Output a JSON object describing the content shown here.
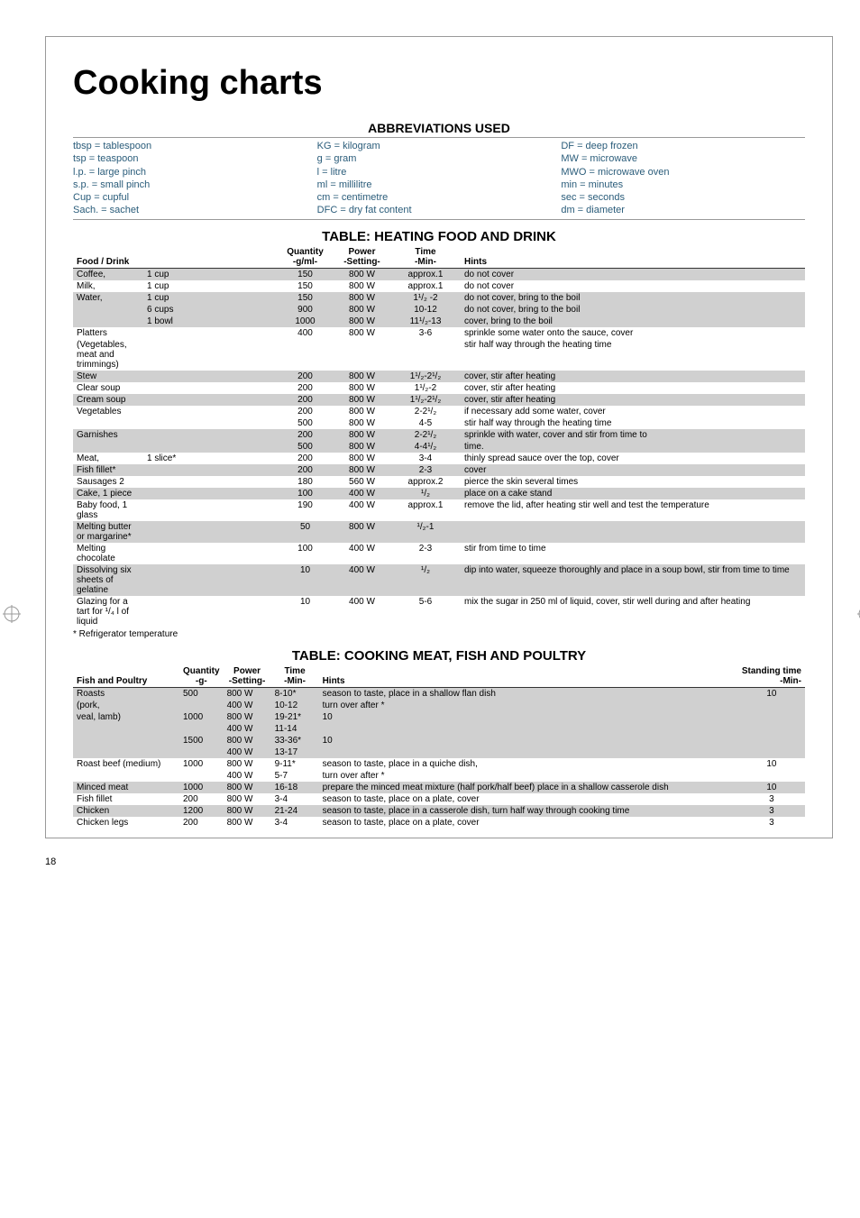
{
  "title": "Cooking charts",
  "abbrev_heading": "ABBREVIATIONS USED",
  "abbrev": {
    "col1": [
      "tbsp = tablespoon",
      "tsp = teaspoon",
      "l.p. = large pinch",
      "s.p. = small pinch",
      "Cup = cupful",
      "Sach. = sachet"
    ],
    "col2": [
      "KG = kilogram",
      "g = gram",
      "l = litre",
      "ml = millilitre",
      "cm = centimetre",
      "DFC = dry fat content"
    ],
    "col3": [
      "DF = deep frozen",
      "MW = microwave",
      "MWO = microwave oven",
      "min = minutes",
      "sec = seconds",
      "dm = diameter"
    ]
  },
  "heating": {
    "heading": "TABLE: HEATING FOOD AND DRINK",
    "columns": {
      "c1": "Food / Drink",
      "c2": "Quantity",
      "c2s": "-g/ml-",
      "c3": "Power",
      "c3s": "-Setting-",
      "c4": "Time",
      "c4s": "-Min-",
      "c5": "Hints"
    },
    "rows": [
      {
        "food": "Coffee,",
        "portion": "1 cup",
        "qty": "150",
        "power": "800 W",
        "time": "approx.1",
        "hint": "do not cover",
        "shaded": true
      },
      {
        "food": "Milk,",
        "portion": "1 cup",
        "qty": "150",
        "power": "800 W",
        "time": "approx.1",
        "hint": "do not cover",
        "shaded": false
      },
      {
        "food": "Water,",
        "portion": "1 cup",
        "qty": "150",
        "power": "800 W",
        "time": "1¹/₂ -2",
        "hint": "do not cover, bring to the boil",
        "shaded": true
      },
      {
        "food": "",
        "portion": "6 cups",
        "qty": "900",
        "power": "800 W",
        "time": "10-12",
        "hint": "do not cover, bring to the boil",
        "shaded": true
      },
      {
        "food": "",
        "portion": "1 bowl",
        "qty": "1000",
        "power": "800 W",
        "time": "11¹/₂-13",
        "hint": "cover, bring to the boil",
        "shaded": true
      },
      {
        "food": "Platters",
        "portion": "",
        "qty": "400",
        "power": "800 W",
        "time": "3-6",
        "hint": "sprinkle some water onto the sauce, cover",
        "shaded": false
      },
      {
        "food": "(Vegetables, meat and trimmings)",
        "portion": "",
        "qty": "",
        "power": "",
        "time": "",
        "hint": "stir half way through the heating time",
        "shaded": false
      },
      {
        "food": "Stew",
        "portion": "",
        "qty": "200",
        "power": "800 W",
        "time": "1¹/₂-2¹/₂",
        "hint": "cover, stir after heating",
        "shaded": true
      },
      {
        "food": "Clear soup",
        "portion": "",
        "qty": "200",
        "power": "800 W",
        "time": "1¹/₂-2",
        "hint": "cover, stir after heating",
        "shaded": false
      },
      {
        "food": "Cream soup",
        "portion": "",
        "qty": "200",
        "power": "800 W",
        "time": "1¹/₂-2¹/₂",
        "hint": "cover, stir after heating",
        "shaded": true
      },
      {
        "food": "Vegetables",
        "portion": "",
        "qty": "200",
        "power": "800 W",
        "time": "2-2¹/₂",
        "hint": "if necessary add some water, cover",
        "shaded": false
      },
      {
        "food": "",
        "portion": "",
        "qty": "500",
        "power": "800 W",
        "time": "4-5",
        "hint": "stir half way through the heating time",
        "shaded": false
      },
      {
        "food": "Garnishes",
        "portion": "",
        "qty": "200",
        "power": "800 W",
        "time": "2-2¹/₂",
        "hint": "sprinkle with water,  cover and stir from time to",
        "shaded": true
      },
      {
        "food": "",
        "portion": "",
        "qty": "500",
        "power": "800 W",
        "time": "4-4¹/₂",
        "hint": "time.",
        "shaded": true
      },
      {
        "food": "Meat,",
        "portion": "1 slice*",
        "qty": "200",
        "power": "800 W",
        "time": "3-4",
        "hint": "thinly spread sauce over the top, cover",
        "shaded": false
      },
      {
        "food": "Fish fillet*",
        "portion": "",
        "qty": "200",
        "power": "800 W",
        "time": "2-3",
        "hint": "cover",
        "shaded": true
      },
      {
        "food": "Sausages 2",
        "portion": "",
        "qty": "180",
        "power": "560 W",
        "time": "approx.2",
        "hint": "pierce the skin several times",
        "shaded": false
      },
      {
        "food": "Cake, 1 piece",
        "portion": "",
        "qty": "100",
        "power": "400 W",
        "time": "¹/₂",
        "hint": "place on a cake stand",
        "shaded": true
      },
      {
        "food": "Baby food, 1 glass",
        "portion": "",
        "qty": "190",
        "power": "400 W",
        "time": "approx.1",
        "hint": "remove the lid, after heating stir well and test the temperature",
        "shaded": false
      },
      {
        "food": "Melting butter or margarine*",
        "portion": "",
        "qty": "50",
        "power": "800 W",
        "time": "¹/₂-1",
        "hint": "",
        "shaded": true
      },
      {
        "food": "Melting chocolate",
        "portion": "",
        "qty": "100",
        "power": "400 W",
        "time": "2-3",
        "hint": "stir from time to time",
        "shaded": false
      },
      {
        "food": "Dissolving six sheets of gelatine",
        "portion": "",
        "qty": "10",
        "power": "400 W",
        "time": "¹/₂",
        "hint": "dip into water, squeeze thoroughly and place in a soup bowl, stir from time to time",
        "shaded": true
      },
      {
        "food": "Glazing for a tart for ¹/₄ l of liquid",
        "portion": "",
        "qty": "10",
        "power": "400 W",
        "time": "5-6",
        "hint": "mix the sugar in 250 ml of liquid, cover, stir well during and after heating",
        "shaded": false
      }
    ],
    "footnote": "*  Refrigerator temperature"
  },
  "cooking": {
    "heading": "TABLE: COOKING MEAT, FISH AND POULTRY",
    "columns": {
      "c1": "Fish and Poultry",
      "c2": "Quantity",
      "c2s": "-g-",
      "c3": "Power",
      "c3s": "-Setting-",
      "c4": "Time",
      "c4s": "-Min-",
      "c5": "Hints",
      "c6": "Standing time",
      "c6s": "-Min-"
    },
    "rows": [
      {
        "food": "Roasts",
        "qty": "500",
        "power": "800 W",
        "time": "8-10*",
        "hint": "season to taste, place in a shallow flan dish",
        "stand": "10",
        "shaded": true
      },
      {
        "food": "(pork,",
        "qty": "",
        "power": "400 W",
        "time": "10-12",
        "hint": "turn over after *",
        "stand": "",
        "shaded": true
      },
      {
        "food": "veal, lamb)",
        "qty": "1000",
        "power": "800 W",
        "time": "19-21*",
        "hint": "               10",
        "stand": "",
        "shaded": true
      },
      {
        "food": "",
        "qty": "",
        "power": "400 W",
        "time": "11-14",
        "hint": "",
        "stand": "",
        "shaded": true
      },
      {
        "food": "",
        "qty": "1500",
        "power": "800 W",
        "time": "33-36*",
        "hint": "               10",
        "stand": "",
        "shaded": true
      },
      {
        "food": "",
        "qty": "",
        "power": "400 W",
        "time": "13-17",
        "hint": "",
        "stand": "",
        "shaded": true
      },
      {
        "food": "Roast beef (medium)",
        "qty": "1000",
        "power": "800 W",
        "time": "9-11*",
        "hint": "season to taste, place in a quiche dish,",
        "stand": "10",
        "shaded": false
      },
      {
        "food": "",
        "qty": "",
        "power": "400 W",
        "time": "5-7",
        "hint": "turn over after *",
        "stand": "",
        "shaded": false
      },
      {
        "food": "Minced meat",
        "qty": "1000",
        "power": "800 W",
        "time": "16-18",
        "hint": "prepare the minced meat mixture (half pork/half beef) place in a shallow casserole dish",
        "stand": "10",
        "shaded": true
      },
      {
        "food": "Fish fillet",
        "qty": "200",
        "power": "800 W",
        "time": "3-4",
        "hint": "season to taste, place on a plate, cover",
        "stand": "3",
        "shaded": false
      },
      {
        "food": "Chicken",
        "qty": "1200",
        "power": "800 W",
        "time": "21-24",
        "hint": "season to taste, place in a casserole dish, turn half way through cooking time",
        "stand": "3",
        "shaded": true
      },
      {
        "food": "Chicken legs",
        "qty": "200",
        "power": "800 W",
        "time": "3-4",
        "hint": "season to taste, place on a plate, cover",
        "stand": "3",
        "shaded": false
      }
    ]
  },
  "page_number": "18"
}
